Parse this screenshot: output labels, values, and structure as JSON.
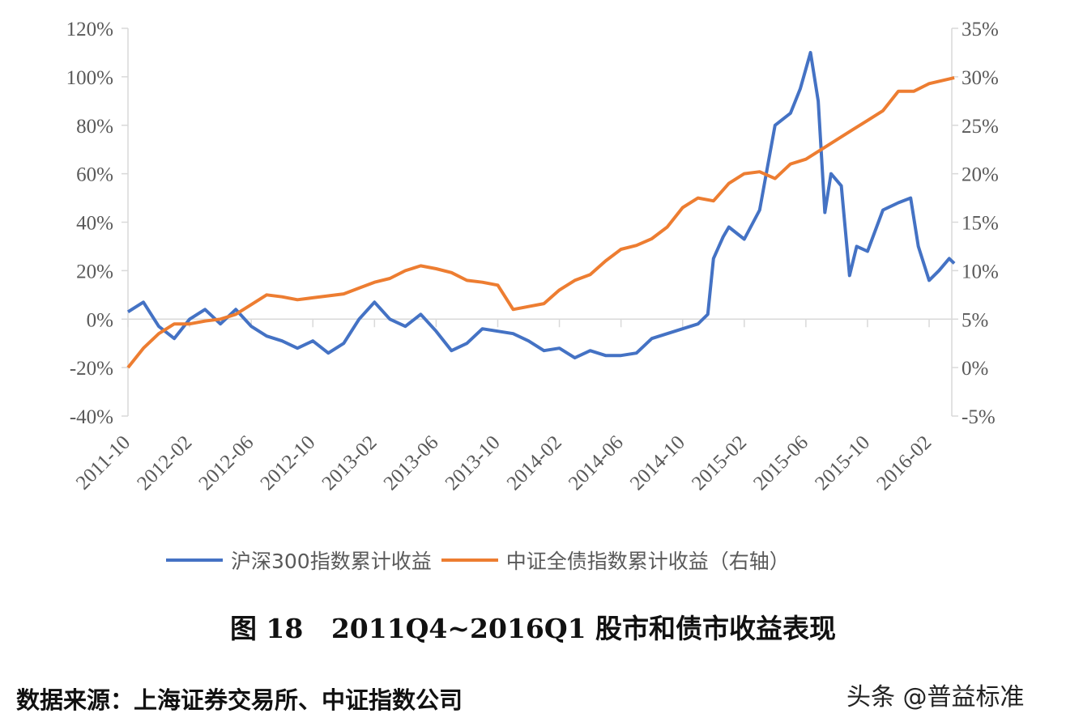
{
  "chart_data": {
    "type": "line",
    "title": "",
    "x_tick_labels": [
      "2011-10",
      "2012-02",
      "2012-06",
      "2012-10",
      "2013-02",
      "2013-06",
      "2013-10",
      "2014-02",
      "2014-06",
      "2014-10",
      "2015-02",
      "2015-06",
      "2015-10",
      "2016-02"
    ],
    "y_left": {
      "ticks": [
        "120%",
        "100%",
        "80%",
        "60%",
        "40%",
        "20%",
        "0%",
        "-20%",
        "-40%"
      ],
      "range": [
        -40,
        120
      ],
      "unit": "%"
    },
    "y_right": {
      "ticks": [
        "35%",
        "30%",
        "25%",
        "20%",
        "15%",
        "10%",
        "5%",
        "0%",
        "-5%"
      ],
      "range": [
        -5,
        35
      ],
      "unit": "%"
    },
    "grid": false,
    "legend_position": "bottom",
    "series": [
      {
        "name": "沪深300指数累计收益",
        "axis": "left",
        "color": "#4472C4",
        "points": [
          [
            "2011-10-01",
            3
          ],
          [
            "2011-11-01",
            7
          ],
          [
            "2011-12-01",
            -3
          ],
          [
            "2012-01-01",
            -8
          ],
          [
            "2012-02-01",
            0
          ],
          [
            "2012-03-01",
            4
          ],
          [
            "2012-04-01",
            -2
          ],
          [
            "2012-05-01",
            4
          ],
          [
            "2012-06-01",
            -3
          ],
          [
            "2012-07-01",
            -7
          ],
          [
            "2012-08-01",
            -9
          ],
          [
            "2012-09-01",
            -12
          ],
          [
            "2012-10-01",
            -9
          ],
          [
            "2012-11-01",
            -14
          ],
          [
            "2012-12-01",
            -10
          ],
          [
            "2013-01-01",
            0
          ],
          [
            "2013-02-01",
            7
          ],
          [
            "2013-03-01",
            0
          ],
          [
            "2013-04-01",
            -3
          ],
          [
            "2013-05-01",
            2
          ],
          [
            "2013-06-01",
            -5
          ],
          [
            "2013-07-01",
            -13
          ],
          [
            "2013-08-01",
            -10
          ],
          [
            "2013-09-01",
            -4
          ],
          [
            "2013-10-01",
            -5
          ],
          [
            "2013-11-01",
            -6
          ],
          [
            "2013-12-01",
            -9
          ],
          [
            "2014-01-01",
            -13
          ],
          [
            "2014-02-01",
            -12
          ],
          [
            "2014-03-01",
            -16
          ],
          [
            "2014-04-01",
            -13
          ],
          [
            "2014-05-01",
            -15
          ],
          [
            "2014-06-01",
            -15
          ],
          [
            "2014-07-01",
            -14
          ],
          [
            "2014-08-01",
            -8
          ],
          [
            "2014-09-01",
            -6
          ],
          [
            "2014-10-01",
            -4
          ],
          [
            "2014-11-01",
            -2
          ],
          [
            "2014-11-20",
            2
          ],
          [
            "2014-12-01",
            25
          ],
          [
            "2014-12-20",
            34
          ],
          [
            "2015-01-01",
            38
          ],
          [
            "2015-02-01",
            33
          ],
          [
            "2015-03-01",
            45
          ],
          [
            "2015-04-01",
            80
          ],
          [
            "2015-05-01",
            85
          ],
          [
            "2015-05-20",
            95
          ],
          [
            "2015-06-10",
            110
          ],
          [
            "2015-06-25",
            90
          ],
          [
            "2015-07-08",
            44
          ],
          [
            "2015-07-20",
            60
          ],
          [
            "2015-08-10",
            55
          ],
          [
            "2015-08-26",
            18
          ],
          [
            "2015-09-10",
            30
          ],
          [
            "2015-10-01",
            28
          ],
          [
            "2015-11-01",
            45
          ],
          [
            "2015-12-01",
            48
          ],
          [
            "2015-12-25",
            50
          ],
          [
            "2016-01-10",
            30
          ],
          [
            "2016-02-01",
            16
          ],
          [
            "2016-02-20",
            20
          ],
          [
            "2016-03-10",
            25
          ],
          [
            "2016-03-20",
            23
          ]
        ]
      },
      {
        "name": "中证全债指数累计收益（右轴）",
        "axis": "right",
        "color": "#ED7D31",
        "points": [
          [
            "2011-10-01",
            0
          ],
          [
            "2011-11-01",
            2
          ],
          [
            "2011-12-01",
            3.5
          ],
          [
            "2012-01-01",
            4.5
          ],
          [
            "2012-02-01",
            4.5
          ],
          [
            "2012-03-01",
            4.8
          ],
          [
            "2012-04-01",
            5
          ],
          [
            "2012-05-01",
            5.5
          ],
          [
            "2012-06-01",
            6.5
          ],
          [
            "2012-07-01",
            7.5
          ],
          [
            "2012-08-01",
            7.3
          ],
          [
            "2012-09-01",
            7
          ],
          [
            "2012-10-01",
            7.2
          ],
          [
            "2012-11-01",
            7.4
          ],
          [
            "2012-12-01",
            7.6
          ],
          [
            "2013-01-01",
            8.2
          ],
          [
            "2013-02-01",
            8.8
          ],
          [
            "2013-03-01",
            9.2
          ],
          [
            "2013-04-01",
            10
          ],
          [
            "2013-05-01",
            10.5
          ],
          [
            "2013-06-01",
            10.2
          ],
          [
            "2013-07-01",
            9.8
          ],
          [
            "2013-08-01",
            9
          ],
          [
            "2013-09-01",
            8.8
          ],
          [
            "2013-10-01",
            8.5
          ],
          [
            "2013-11-01",
            6
          ],
          [
            "2013-12-01",
            6.3
          ],
          [
            "2014-01-01",
            6.6
          ],
          [
            "2014-02-01",
            8
          ],
          [
            "2014-03-01",
            9
          ],
          [
            "2014-04-01",
            9.6
          ],
          [
            "2014-05-01",
            11
          ],
          [
            "2014-06-01",
            12.2
          ],
          [
            "2014-07-01",
            12.6
          ],
          [
            "2014-08-01",
            13.3
          ],
          [
            "2014-09-01",
            14.5
          ],
          [
            "2014-10-01",
            16.5
          ],
          [
            "2014-11-01",
            17.5
          ],
          [
            "2014-12-01",
            17.2
          ],
          [
            "2015-01-01",
            19
          ],
          [
            "2015-02-01",
            20
          ],
          [
            "2015-03-01",
            20.2
          ],
          [
            "2015-04-01",
            19.5
          ],
          [
            "2015-05-01",
            21
          ],
          [
            "2015-06-01",
            21.5
          ],
          [
            "2015-07-01",
            22.5
          ],
          [
            "2015-08-01",
            23.5
          ],
          [
            "2015-09-01",
            24.5
          ],
          [
            "2015-10-01",
            25.5
          ],
          [
            "2015-11-01",
            26.5
          ],
          [
            "2015-12-01",
            28.5
          ],
          [
            "2016-01-01",
            28.5
          ],
          [
            "2016-02-01",
            29.3
          ],
          [
            "2016-03-20",
            29.9
          ]
        ]
      }
    ]
  },
  "legend": {
    "items": [
      {
        "label": "沪深300指数累计收益",
        "color": "#4472C4"
      },
      {
        "label": "中证全债指数累计收益（右轴）",
        "color": "#ED7D31"
      }
    ]
  },
  "caption": "图 18   2011Q4~2016Q1 股市和债市收益表现",
  "source": "数据来源：上海证券交易所、中证指数公司",
  "watermark": "头条 @普益标准"
}
